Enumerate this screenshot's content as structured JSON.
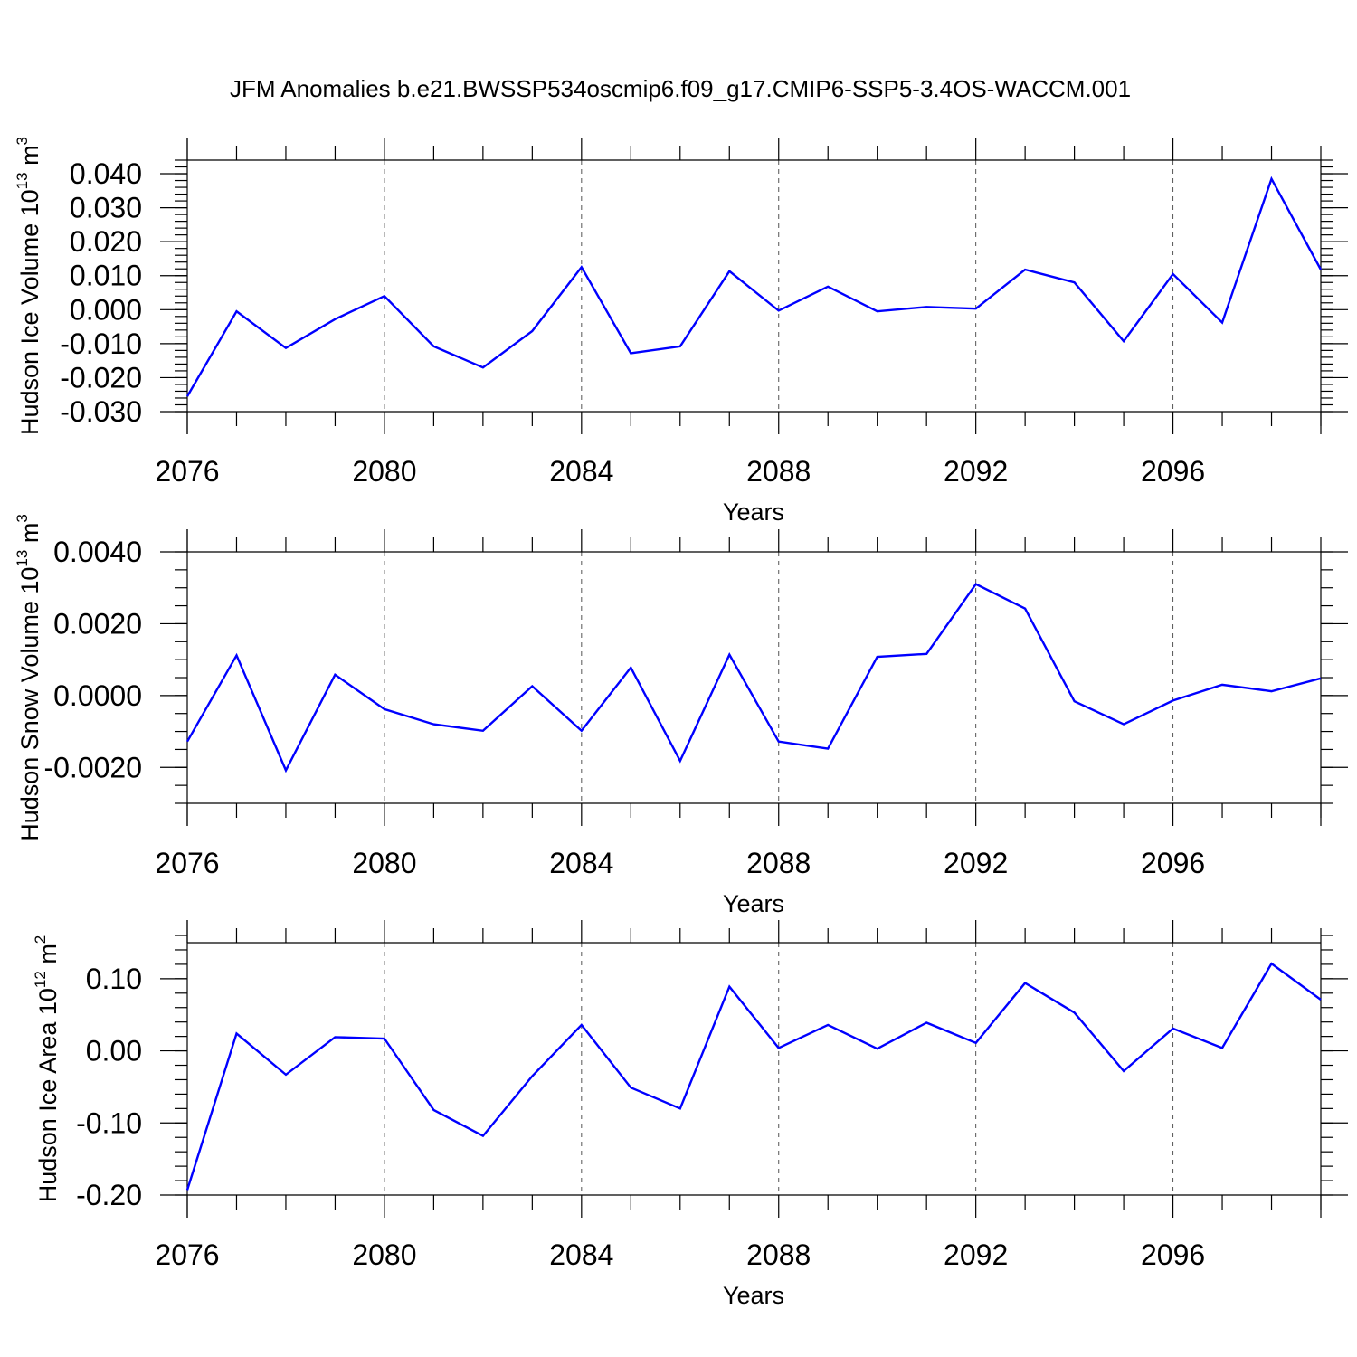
{
  "title": "JFM Anomalies b.e21.BWSSP534oscmip6.f09_g17.CMIP6-SSP5-3.4OS-WACCM.001",
  "series_color": "#0000ff",
  "chart_data": [
    {
      "type": "line",
      "name": "ice-volume",
      "ylabel_main": "Hudson Ice Volume 10",
      "ylabel_exp": "13",
      "ylabel_unit": "m",
      "ylabel_unit_exp": "3",
      "xlabel": "Years",
      "xlim": [
        2076,
        2099
      ],
      "ylim": [
        -0.03,
        0.044
      ],
      "y_major_ticks": [
        -0.03,
        -0.02,
        -0.01,
        0.0,
        0.01,
        0.02,
        0.03,
        0.04
      ],
      "y_tick_labels": [
        "-0.030",
        "-0.020",
        "-0.010",
        "0.000",
        "0.010",
        "0.020",
        "0.030",
        "0.040"
      ],
      "y_minor_step": 0.002,
      "x_major_ticks": [
        2076,
        2080,
        2084,
        2088,
        2092,
        2096
      ],
      "x_tick_labels": [
        "2076",
        "2080",
        "2084",
        "2088",
        "2092",
        "2096"
      ],
      "x": [
        2076,
        2077,
        2078,
        2079,
        2080,
        2081,
        2082,
        2083,
        2084,
        2085,
        2086,
        2087,
        2088,
        2089,
        2090,
        2091,
        2092,
        2093,
        2094,
        2095,
        2096,
        2097,
        2098,
        2099
      ],
      "values": [
        -0.0255,
        -0.0005,
        -0.0113,
        -0.0028,
        0.004,
        -0.0108,
        -0.017,
        -0.0063,
        0.0125,
        -0.0128,
        -0.0108,
        0.0113,
        -0.0003,
        0.0068,
        -0.0005,
        0.0008,
        0.0003,
        0.0118,
        0.008,
        -0.0093,
        0.0105,
        -0.0038,
        0.0385,
        0.0118
      ]
    },
    {
      "type": "line",
      "name": "snow-volume",
      "ylabel_main": "Hudson Snow Volume 10",
      "ylabel_exp": "13",
      "ylabel_unit": "m",
      "ylabel_unit_exp": "3",
      "xlabel": "Years",
      "xlim": [
        2076,
        2099
      ],
      "ylim": [
        -0.003,
        0.004
      ],
      "y_major_ticks": [
        -0.002,
        0.0,
        0.002,
        0.004
      ],
      "y_tick_labels": [
        "-0.0020",
        "0.0000",
        "0.0020",
        "0.0040"
      ],
      "y_minor_step": 0.0005,
      "x_major_ticks": [
        2076,
        2080,
        2084,
        2088,
        2092,
        2096
      ],
      "x_tick_labels": [
        "2076",
        "2080",
        "2084",
        "2088",
        "2092",
        "2096"
      ],
      "x": [
        2076,
        2077,
        2078,
        2079,
        2080,
        2081,
        2082,
        2083,
        2084,
        2085,
        2086,
        2087,
        2088,
        2089,
        2090,
        2091,
        2092,
        2093,
        2094,
        2095,
        2096,
        2097,
        2098,
        2099
      ],
      "values": [
        -0.00128,
        0.00112,
        -0.00208,
        0.00058,
        -0.00038,
        -0.0008,
        -0.00098,
        0.00026,
        -0.00098,
        0.00078,
        -0.00182,
        0.00114,
        -0.00128,
        -0.00148,
        0.00108,
        0.00116,
        0.0031,
        0.00242,
        -0.00016,
        -0.0008,
        -0.00014,
        0.0003,
        0.00012,
        0.00048
      ]
    },
    {
      "type": "line",
      "name": "ice-area",
      "ylabel_main": "Hudson Ice Area 10",
      "ylabel_exp": "12",
      "ylabel_unit": "m",
      "ylabel_unit_exp": "2",
      "xlabel": "Years",
      "xlim": [
        2076,
        2099
      ],
      "ylim": [
        -0.2,
        0.15
      ],
      "y_major_ticks": [
        -0.2,
        -0.1,
        0.0,
        0.1
      ],
      "y_tick_labels": [
        "-0.20",
        "-0.10",
        "0.00",
        "0.10"
      ],
      "y_minor_step": 0.02,
      "x_major_ticks": [
        2076,
        2080,
        2084,
        2088,
        2092,
        2096
      ],
      "x_tick_labels": [
        "2076",
        "2080",
        "2084",
        "2088",
        "2092",
        "2096"
      ],
      "x": [
        2076,
        2077,
        2078,
        2079,
        2080,
        2081,
        2082,
        2083,
        2084,
        2085,
        2086,
        2087,
        2088,
        2089,
        2090,
        2091,
        2092,
        2093,
        2094,
        2095,
        2096,
        2097,
        2098,
        2099
      ],
      "values": [
        -0.193,
        0.024,
        -0.033,
        0.019,
        0.017,
        -0.082,
        -0.118,
        -0.035,
        0.036,
        -0.051,
        -0.08,
        0.089,
        0.004,
        0.036,
        0.003,
        0.039,
        0.011,
        0.094,
        0.053,
        -0.028,
        0.031,
        0.004,
        0.121,
        0.071
      ]
    }
  ]
}
